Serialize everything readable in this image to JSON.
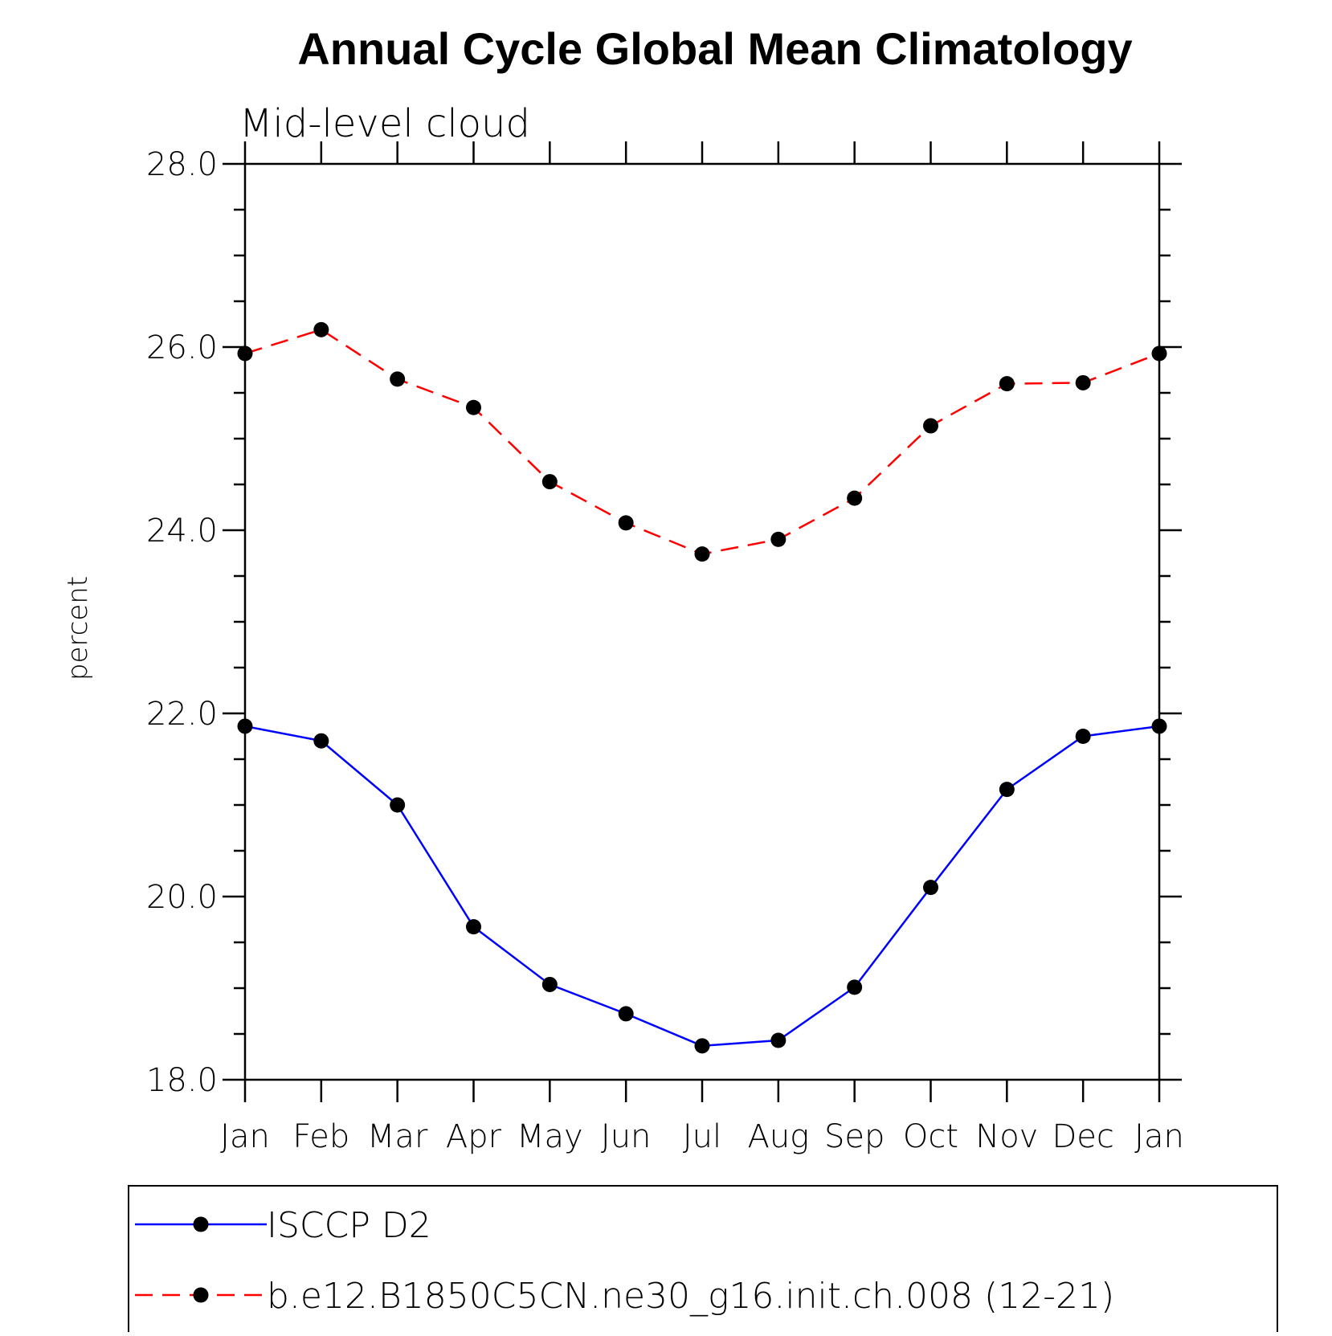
{
  "chart_data": {
    "type": "line",
    "title": "Annual Cycle Global Mean Climatology",
    "subtitle": "Mid-level cloud",
    "xlabel": "",
    "ylabel": "percent",
    "categories": [
      "Jan",
      "Feb",
      "Mar",
      "Apr",
      "May",
      "Jun",
      "Jul",
      "Aug",
      "Sep",
      "Oct",
      "Nov",
      "Dec",
      "Jan"
    ],
    "ylim": [
      18.0,
      28.0
    ],
    "yticks": [
      18.0,
      20.0,
      22.0,
      24.0,
      26.0,
      28.0
    ],
    "ytick_labels": [
      "18.0",
      "20.0",
      "22.0",
      "24.0",
      "26.0",
      "28.0"
    ],
    "grid": false,
    "legend_position": "bottom",
    "series": [
      {
        "name": "ISCCP D2",
        "color": "#0000ff",
        "line_style": "solid",
        "marker": "filled-circle",
        "marker_color": "#000000",
        "values": [
          21.86,
          21.7,
          21.0,
          19.67,
          19.04,
          18.72,
          18.37,
          18.43,
          19.01,
          20.1,
          21.17,
          21.75,
          21.86
        ]
      },
      {
        "name": "b.e12.B1850C5CN.ne30_g16.init.ch.008 (12-21)",
        "color": "#ff0000",
        "line_style": "dashed",
        "marker": "filled-circle",
        "marker_color": "#000000",
        "values": [
          25.93,
          26.19,
          25.65,
          25.34,
          24.53,
          24.08,
          23.74,
          23.9,
          24.35,
          25.14,
          25.6,
          25.61,
          25.93
        ]
      }
    ]
  }
}
